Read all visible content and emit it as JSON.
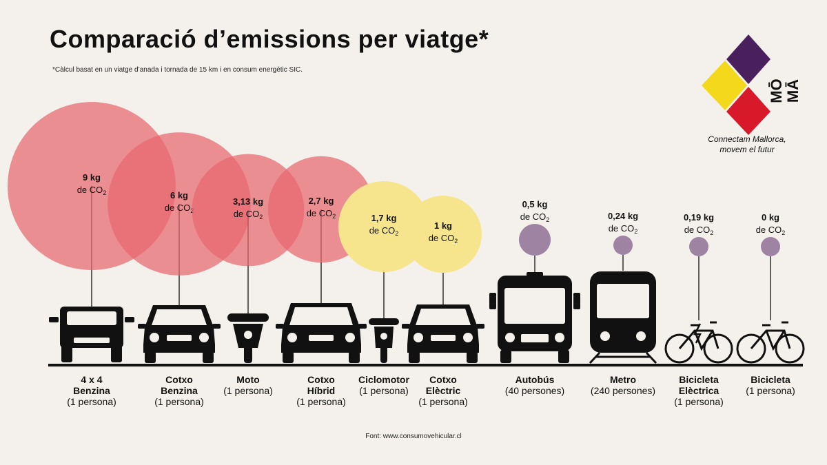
{
  "title": "Comparació d’emissions per viatge*",
  "note": "*Càlcul basat en un viatge d’anada i tornada de 15 km i en consum energètic SIC.",
  "source": "Font: www.consumovehicular.cl",
  "logo": {
    "text_top": "MŌ",
    "text_bottom": "MĀ",
    "colors": [
      "#4a1f5e",
      "#f3d81b",
      "#d8192a"
    ]
  },
  "tagline": [
    "Connectam Mallorca,",
    "movem el futur"
  ],
  "colors": {
    "high": "#e8686f",
    "medium": "#f6e58c",
    "low": "#9e83a2",
    "ink": "#111111",
    "background": "#f4f1ec"
  },
  "chart_data": {
    "type": "bubble",
    "unit_prefix": "de CO",
    "unit_subscript": "2",
    "items": [
      {
        "name_lines": [
          "4 x 4",
          "Benzina"
        ],
        "people": "(1 persona)",
        "value": 9,
        "value_label": "9 kg",
        "group": "high",
        "icon": "suv-icon"
      },
      {
        "name_lines": [
          "Cotxo",
          "Benzina"
        ],
        "people": "(1 persona)",
        "value": 6,
        "value_label": "6 kg",
        "group": "high",
        "icon": "car-icon"
      },
      {
        "name_lines": [
          "Moto"
        ],
        "people": "(1 persona)",
        "value": 3.13,
        "value_label": "3,13 kg",
        "group": "high",
        "icon": "motorbike-icon"
      },
      {
        "name_lines": [
          "Cotxo",
          "Híbrid"
        ],
        "people": "(1 persona)",
        "value": 2.7,
        "value_label": "2,7 kg",
        "group": "high",
        "icon": "hybrid-car-icon"
      },
      {
        "name_lines": [
          "Ciclomotor"
        ],
        "people": "(1 persona)",
        "value": 1.7,
        "value_label": "1,7 kg",
        "group": "medium",
        "icon": "scooter-icon"
      },
      {
        "name_lines": [
          "Cotxo",
          "Elèctric"
        ],
        "people": "(1 persona)",
        "value": 1,
        "value_label": "1 kg",
        "group": "medium",
        "icon": "electric-car-icon"
      },
      {
        "name_lines": [
          "Autobús"
        ],
        "people": "(40 persones)",
        "value": 0.5,
        "value_label": "0,5 kg",
        "group": "low",
        "icon": "bus-icon"
      },
      {
        "name_lines": [
          "Metro"
        ],
        "people": "(240 persones)",
        "value": 0.24,
        "value_label": "0,24 kg",
        "group": "low",
        "icon": "train-icon"
      },
      {
        "name_lines": [
          "Bicicleta",
          "Elèctrica"
        ],
        "people": "(1 persona)",
        "value": 0.19,
        "value_label": "0,19 kg",
        "group": "low",
        "icon": "electric-bicycle-icon"
      },
      {
        "name_lines": [
          "Bicicleta"
        ],
        "people": "(1 persona)",
        "value": 0,
        "value_label": "0 kg",
        "group": "low",
        "icon": "bicycle-icon"
      }
    ]
  }
}
